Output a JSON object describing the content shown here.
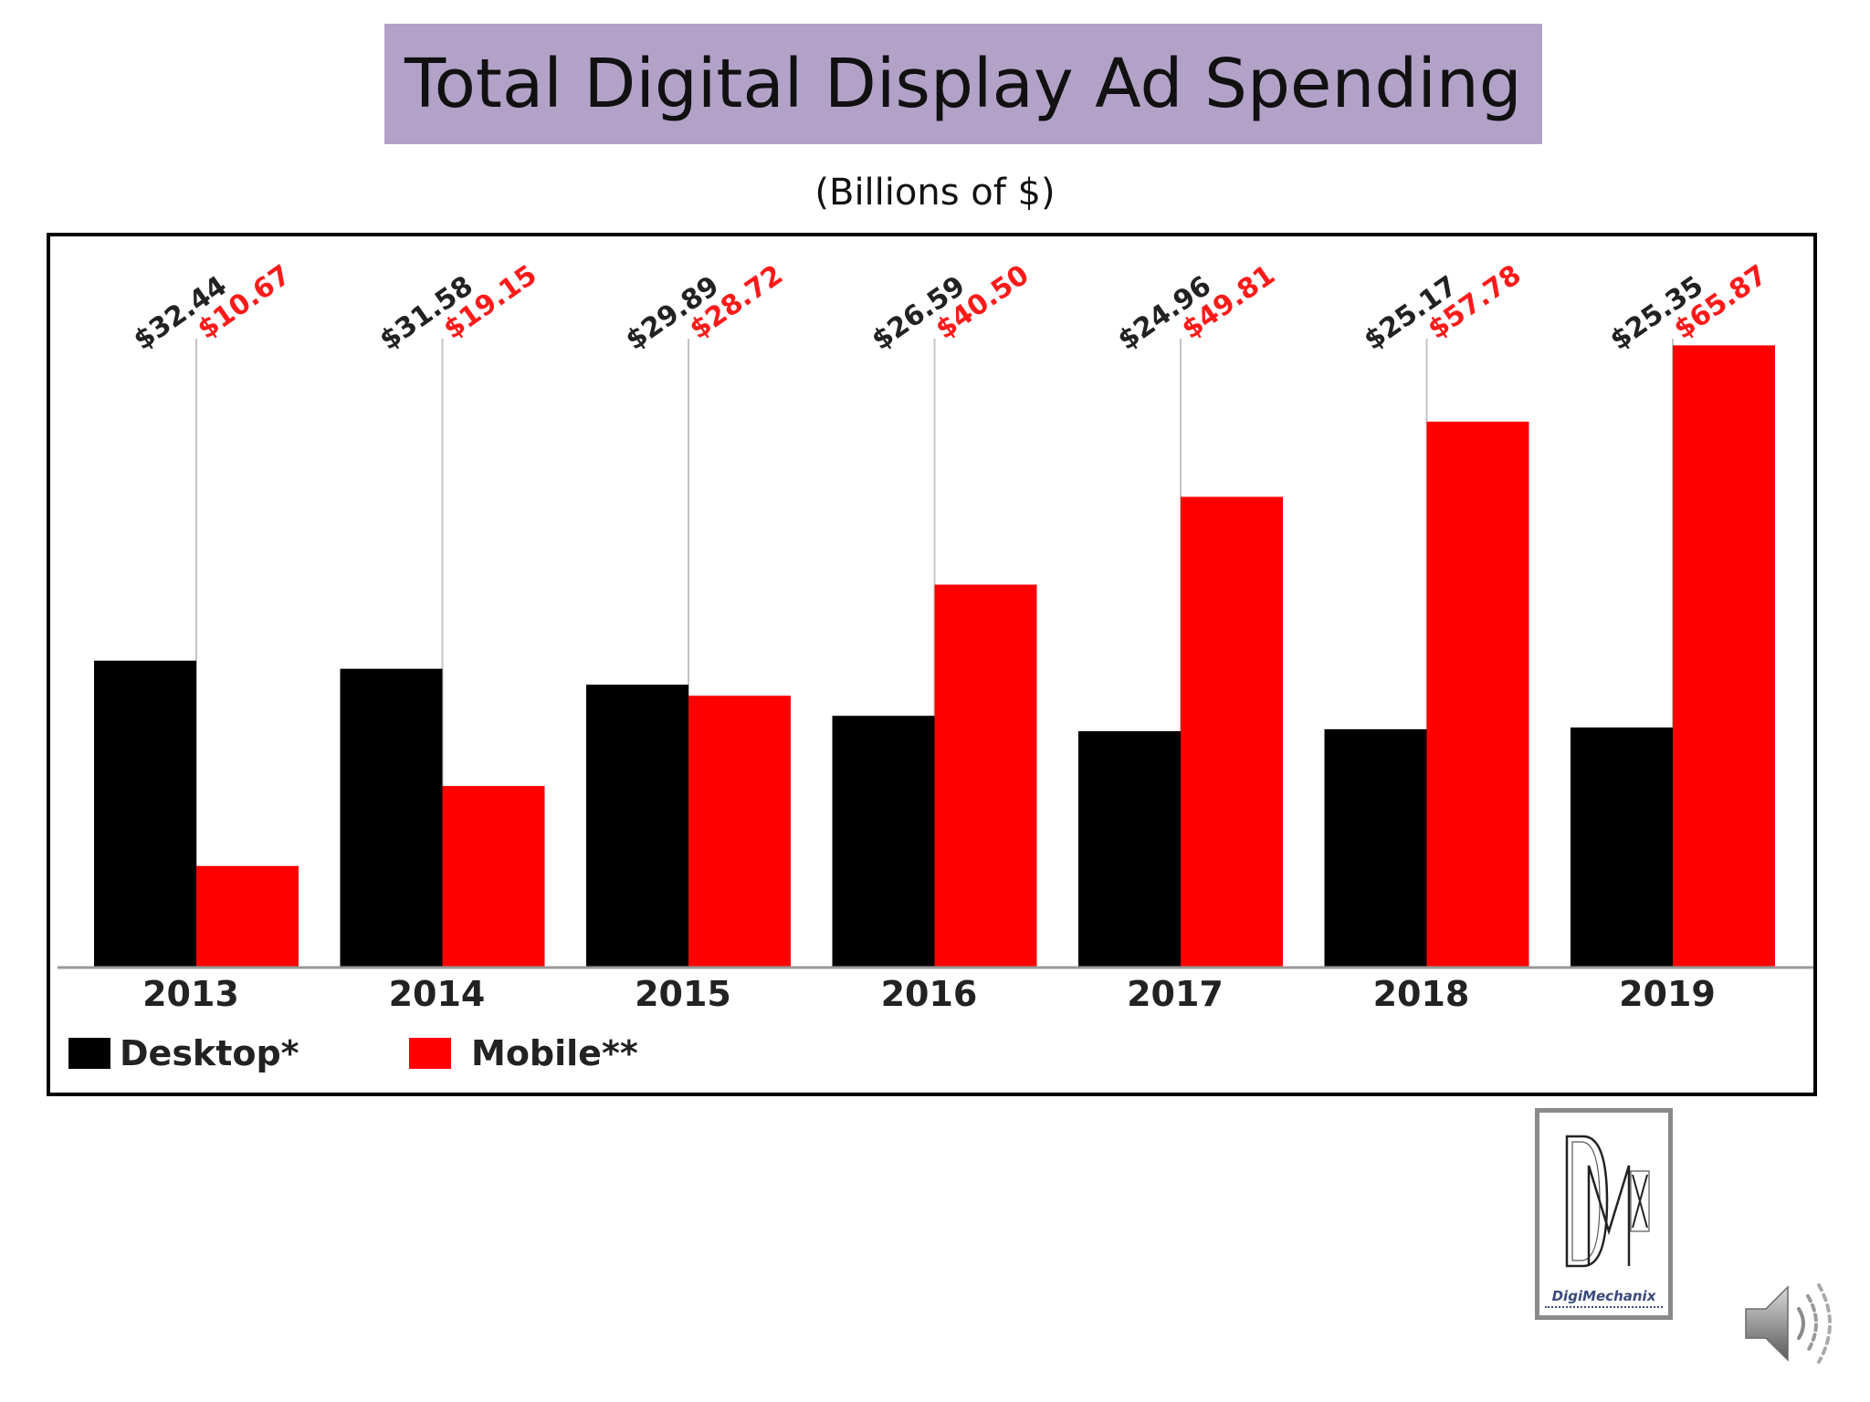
{
  "slide": {
    "title": "Total Digital Display Ad Spending",
    "subtitle": "(Billions of $)"
  },
  "logo": {
    "icon": "dmx-logo-icon",
    "name": "DigiMechanix"
  },
  "audio": {
    "icon": "speaker-icon"
  },
  "chart_data": {
    "type": "bar",
    "categories": [
      "2013",
      "2014",
      "2015",
      "2016",
      "2017",
      "2018",
      "2019"
    ],
    "series": [
      {
        "name": "Desktop*",
        "color": "#000000",
        "values": [
          32.44,
          31.58,
          29.89,
          26.59,
          24.96,
          25.17,
          25.35
        ],
        "labels": [
          "$32.44",
          "$31.58",
          "$29.89",
          "$26.59",
          "$24.96",
          "$25.17",
          "$25.35"
        ]
      },
      {
        "name": "Mobile**",
        "color": "#ff0000",
        "values": [
          10.67,
          19.15,
          28.72,
          40.5,
          49.81,
          57.78,
          65.87
        ],
        "labels": [
          "$10.67",
          "$19.15",
          "$28.72",
          "$40.50",
          "$49.81",
          "$57.78",
          "$65.87"
        ]
      }
    ],
    "ylim": [
      0,
      66
    ],
    "legend_position": "bottom-left",
    "grid": false
  }
}
